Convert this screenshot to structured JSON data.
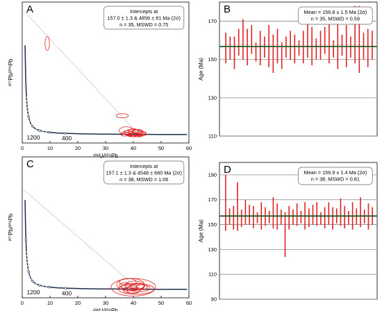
{
  "colors": {
    "data": "#e02020",
    "concordia": "#1a2c4a",
    "mean_line": "#1e5e22",
    "grid": "#8a8a8a"
  },
  "chart_data": [
    {
      "type": "scatter",
      "panel_label": "A",
      "ylabel": "²⁰⁷Pb/²⁰⁶Pb",
      "xlabel": "²³⁸U/²⁰⁶Pb",
      "x_ticks": [
        "0",
        "10",
        "20",
        "30",
        "40",
        "50",
        "60"
      ],
      "xlim": [
        0,
        60
      ],
      "ylim": [
        0,
        0.8
      ],
      "annotation": [
        "Intercepts at",
        "157.0 ± 1.3 & 4856 ± 81 Ma (2σ)",
        "n = 35, MSWD = 0.75"
      ],
      "curve_labels": [
        {
          "text": "1200",
          "x": 4.0,
          "y": 0.056
        },
        {
          "text": "400",
          "x": 16.0,
          "y": 0.052
        }
      ],
      "discordia": {
        "x": [
          0,
          41.9
        ],
        "y": [
          0.76,
          0.049
        ]
      },
      "ellipses": [
        {
          "x": 9.0,
          "y": 0.565,
          "rx": 0.8,
          "ry": 0.04,
          "rot": 0
        },
        {
          "x": 36.0,
          "y": 0.155,
          "rx": 2.2,
          "ry": 0.012,
          "rot": 0
        },
        {
          "x": 37.5,
          "y": 0.07,
          "rx": 2.6,
          "ry": 0.022,
          "rot": 0
        },
        {
          "x": 40.0,
          "y": 0.06,
          "rx": 3.2,
          "ry": 0.018,
          "rot": 0
        },
        {
          "x": 41.0,
          "y": 0.055,
          "rx": 2.8,
          "ry": 0.014,
          "rot": 0
        },
        {
          "x": 39.0,
          "y": 0.052,
          "rx": 2.0,
          "ry": 0.012,
          "rot": 0
        },
        {
          "x": 42.5,
          "y": 0.05,
          "rx": 2.2,
          "ry": 0.01,
          "rot": 0
        },
        {
          "x": 38.0,
          "y": 0.058,
          "rx": 1.8,
          "ry": 0.013,
          "rot": 0
        },
        {
          "x": 40.5,
          "y": 0.046,
          "rx": 2.5,
          "ry": 0.011,
          "rot": 0
        },
        {
          "x": 41.5,
          "y": 0.065,
          "rx": 2.0,
          "ry": 0.012,
          "rot": 0
        },
        {
          "x": 39.5,
          "y": 0.045,
          "rx": 1.6,
          "ry": 0.01,
          "rot": 0
        },
        {
          "x": 43.0,
          "y": 0.057,
          "rx": 1.5,
          "ry": 0.011,
          "rot": 0
        },
        {
          "x": 37.0,
          "y": 0.05,
          "rx": 1.6,
          "ry": 0.011,
          "rot": 0
        },
        {
          "x": 40.0,
          "y": 0.068,
          "rx": 1.8,
          "ry": 0.013,
          "rot": 0
        },
        {
          "x": 42.0,
          "y": 0.044,
          "rx": 1.4,
          "ry": 0.009,
          "rot": 0
        }
      ]
    },
    {
      "type": "bar",
      "panel_label": "B",
      "ylabel": "Age (Ma)",
      "y_ticks": [
        "110",
        "130",
        "150",
        "170"
      ],
      "ylim": [
        110,
        180
      ],
      "mean": 156.8,
      "annotation": [
        "Mean = 156.8 ± 1.5 Ma (2σ)",
        "n = 35, MSWD = 0.59"
      ],
      "bars": [
        {
          "lo": 148,
          "hi": 164
        },
        {
          "lo": 150,
          "hi": 162
        },
        {
          "lo": 145,
          "hi": 162
        },
        {
          "lo": 152,
          "hi": 166
        },
        {
          "lo": 150,
          "hi": 171
        },
        {
          "lo": 147,
          "hi": 166
        },
        {
          "lo": 153,
          "hi": 168
        },
        {
          "lo": 149,
          "hi": 159
        },
        {
          "lo": 147,
          "hi": 165
        },
        {
          "lo": 151,
          "hi": 162
        },
        {
          "lo": 146,
          "hi": 168
        },
        {
          "lo": 143,
          "hi": 163
        },
        {
          "lo": 148,
          "hi": 166
        },
        {
          "lo": 145,
          "hi": 159
        },
        {
          "lo": 151,
          "hi": 162
        },
        {
          "lo": 150,
          "hi": 165
        },
        {
          "lo": 148,
          "hi": 163
        },
        {
          "lo": 152,
          "hi": 160
        },
        {
          "lo": 148,
          "hi": 165
        },
        {
          "lo": 151,
          "hi": 172
        },
        {
          "lo": 147,
          "hi": 167
        },
        {
          "lo": 150,
          "hi": 161
        },
        {
          "lo": 150,
          "hi": 165
        },
        {
          "lo": 153,
          "hi": 167
        },
        {
          "lo": 148,
          "hi": 169
        },
        {
          "lo": 151,
          "hi": 160
        },
        {
          "lo": 145,
          "hi": 169
        },
        {
          "lo": 152,
          "hi": 163
        },
        {
          "lo": 146,
          "hi": 168
        },
        {
          "lo": 151,
          "hi": 162
        },
        {
          "lo": 148,
          "hi": 178
        },
        {
          "lo": 143,
          "hi": 178
        },
        {
          "lo": 150,
          "hi": 164
        },
        {
          "lo": 146,
          "hi": 166
        },
        {
          "lo": 150,
          "hi": 165
        }
      ]
    },
    {
      "type": "scatter",
      "panel_label": "C",
      "ylabel": "²⁰⁷Pb/²⁰⁶Pb",
      "xlabel": "²³⁸U/²⁰⁶Pb",
      "x_ticks": [
        "0",
        "10",
        "20",
        "30",
        "40",
        "50",
        "60"
      ],
      "xlim": [
        0,
        60
      ],
      "ylim": [
        0,
        0.8
      ],
      "annotation": [
        "Intercepts at",
        "157.1 ± 1.3 & 4548 ± 660 Ma (2σ)",
        "n = 38, MSWD = 1.06"
      ],
      "curve_labels": [
        {
          "text": "1200",
          "x": 4.0,
          "y": 0.055
        },
        {
          "text": "400",
          "x": 16.0,
          "y": 0.05
        }
      ],
      "discordia": {
        "x": [
          0,
          41.9
        ],
        "y": [
          0.62,
          0.049
        ]
      },
      "ellipses": [
        {
          "x": 40.0,
          "y": 0.06,
          "rx": 8.0,
          "ry": 0.05,
          "rot": 0
        },
        {
          "x": 39.0,
          "y": 0.075,
          "rx": 5.0,
          "ry": 0.035,
          "rot": 0
        },
        {
          "x": 41.0,
          "y": 0.05,
          "rx": 6.5,
          "ry": 0.03,
          "rot": 0
        },
        {
          "x": 38.0,
          "y": 0.09,
          "rx": 3.0,
          "ry": 0.02,
          "rot": 0
        },
        {
          "x": 40.5,
          "y": 0.07,
          "rx": 3.5,
          "ry": 0.025,
          "rot": 0
        },
        {
          "x": 42.0,
          "y": 0.055,
          "rx": 4.0,
          "ry": 0.02,
          "rot": 0
        },
        {
          "x": 39.5,
          "y": 0.045,
          "rx": 3.2,
          "ry": 0.018,
          "rot": 0
        },
        {
          "x": 41.5,
          "y": 0.065,
          "rx": 2.5,
          "ry": 0.018,
          "rot": 0
        },
        {
          "x": 38.5,
          "y": 0.06,
          "rx": 2.8,
          "ry": 0.02,
          "rot": 0
        },
        {
          "x": 40.0,
          "y": 0.04,
          "rx": 2.2,
          "ry": 0.015,
          "rot": 0
        },
        {
          "x": 43.0,
          "y": 0.06,
          "rx": 2.0,
          "ry": 0.014,
          "rot": 0
        },
        {
          "x": 37.0,
          "y": 0.07,
          "rx": 2.0,
          "ry": 0.016,
          "rot": 0
        }
      ]
    },
    {
      "type": "bar",
      "panel_label": "D",
      "ylabel": "Age (Ma)",
      "y_ticks": [
        "90",
        "110",
        "130",
        "150",
        "170",
        "190"
      ],
      "ylim": [
        90,
        200
      ],
      "mean": 156.9,
      "annotation": [
        "Mean = 156.9 ± 1.4 Ma (2σ)",
        "n = 38, MSWD = 0.81"
      ],
      "bars": [
        {
          "lo": 145,
          "hi": 190
        },
        {
          "lo": 150,
          "hi": 163
        },
        {
          "lo": 146,
          "hi": 165
        },
        {
          "lo": 145,
          "hi": 184
        },
        {
          "lo": 148,
          "hi": 162
        },
        {
          "lo": 150,
          "hi": 170
        },
        {
          "lo": 150,
          "hi": 166
        },
        {
          "lo": 147,
          "hi": 165
        },
        {
          "lo": 151,
          "hi": 160
        },
        {
          "lo": 146,
          "hi": 168
        },
        {
          "lo": 149,
          "hi": 164
        },
        {
          "lo": 151,
          "hi": 161
        },
        {
          "lo": 147,
          "hi": 172
        },
        {
          "lo": 146,
          "hi": 167
        },
        {
          "lo": 150,
          "hi": 162
        },
        {
          "lo": 124,
          "hi": 160
        },
        {
          "lo": 146,
          "hi": 165
        },
        {
          "lo": 150,
          "hi": 162
        },
        {
          "lo": 149,
          "hi": 167
        },
        {
          "lo": 151,
          "hi": 161
        },
        {
          "lo": 146,
          "hi": 168
        },
        {
          "lo": 148,
          "hi": 163
        },
        {
          "lo": 150,
          "hi": 166
        },
        {
          "lo": 149,
          "hi": 168
        },
        {
          "lo": 150,
          "hi": 160
        },
        {
          "lo": 147,
          "hi": 164
        },
        {
          "lo": 150,
          "hi": 168
        },
        {
          "lo": 146,
          "hi": 164
        },
        {
          "lo": 151,
          "hi": 163
        },
        {
          "lo": 149,
          "hi": 171
        },
        {
          "lo": 147,
          "hi": 165
        },
        {
          "lo": 150,
          "hi": 161
        },
        {
          "lo": 146,
          "hi": 168
        },
        {
          "lo": 150,
          "hi": 163
        },
        {
          "lo": 148,
          "hi": 172
        },
        {
          "lo": 151,
          "hi": 162
        },
        {
          "lo": 146,
          "hi": 167
        },
        {
          "lo": 150,
          "hi": 164
        }
      ]
    }
  ]
}
